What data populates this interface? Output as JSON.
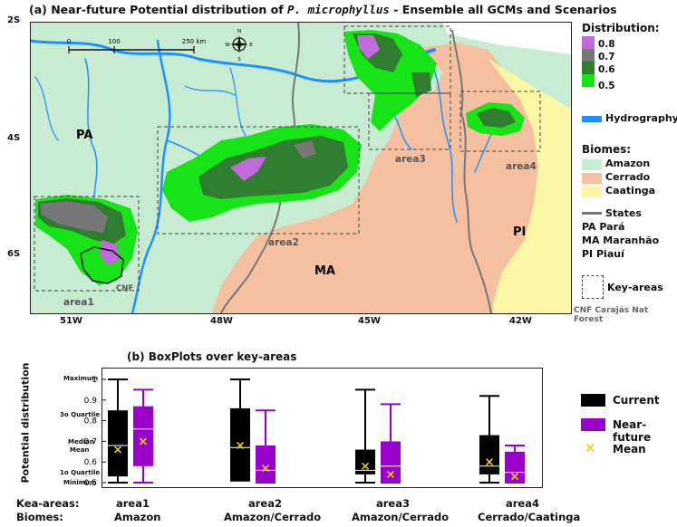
{
  "map": {
    "title_prefix": "(a)  Near-future Potential distribution of",
    "title_species": "P. microphyllus",
    "title_suffix": "- Ensemble all GCMs and Scenarios",
    "lat_labels": [
      "2S",
      "4S",
      "6S"
    ],
    "lon_labels": [
      "51W",
      "48W",
      "45W",
      "42W"
    ],
    "scale_bar": {
      "ticks": [
        "0",
        "100",
        "250 km"
      ]
    },
    "compass": {
      "n": "N",
      "s": "S",
      "e": "E",
      "w": "W"
    },
    "state_labels": {
      "pa": "PA",
      "ma": "MA",
      "pi": "PI"
    },
    "area_labels": [
      "area1",
      "area2",
      "area3",
      "area4"
    ],
    "cnf_label": "CNF",
    "colors": {
      "amazon": "#c8ecd2",
      "cerrado": "#f5c0a0",
      "caatinga": "#fbf7a5",
      "hydrography": "#1e90ff",
      "states": "#777777",
      "d08": "#bf6ad8",
      "d07": "#777777",
      "d06": "#2f7d2f",
      "d05": "#17e417",
      "current": "#000000",
      "near_future": "#9900cc",
      "mean": "#e6d200"
    }
  },
  "legend": {
    "distribution_title": "Distribution:",
    "distribution_items": [
      "0.8",
      "0.7",
      "0.6",
      "0.5"
    ],
    "hydrography": "Hydrography",
    "biomes_title": "Biomes:",
    "biomes": [
      "Amazon",
      "Cerrado",
      "Caatinga"
    ],
    "states_title": "States",
    "states": [
      "PA Pará",
      "MA Maranhão",
      "PI Piauí"
    ],
    "key_areas": "Key-areas",
    "cnf_note": "CNF Carajás Nat Forest"
  },
  "boxplot": {
    "title": "(b)       BoxPlots over key-areas",
    "ylabel": "Potential distribution",
    "stat_labels": [
      "Maximum",
      "3o Quartile",
      "Median",
      "Mean",
      "1o Quartile",
      "Minimum"
    ],
    "legend": [
      "Current",
      "Near-future",
      "Mean"
    ],
    "row_labels": [
      "Kea-areas:",
      "Biomes:"
    ],
    "groups": [
      {
        "area": "area1",
        "biome": "Amazon"
      },
      {
        "area": "area2",
        "biome": "Amazon/Cerrado"
      },
      {
        "area": "area3",
        "biome": "Amazon/Cerrado"
      },
      {
        "area": "area4",
        "biome": "Cerrado/Caatinga"
      }
    ]
  },
  "chart_data": {
    "type": "box",
    "title": "BoxPlots over key-areas",
    "ylabel": "Potential distribution",
    "ylim": [
      0.5,
      1.0
    ],
    "yticks": [
      0.5,
      0.6,
      0.7,
      0.8,
      0.9,
      1.0
    ],
    "categories": [
      "area1",
      "area2",
      "area3",
      "area4"
    ],
    "series": [
      {
        "name": "Current",
        "boxes": [
          {
            "min": 0.5,
            "q1": 0.53,
            "median": 0.68,
            "q3": 0.85,
            "max": 1.0,
            "mean": 0.66
          },
          {
            "min": 0.51,
            "q1": 0.51,
            "median": 0.67,
            "q3": 0.86,
            "max": 1.0,
            "mean": 0.68
          },
          {
            "min": 0.5,
            "q1": 0.54,
            "median": 0.56,
            "q3": 0.66,
            "max": 0.95,
            "mean": 0.58
          },
          {
            "min": 0.5,
            "q1": 0.54,
            "median": 0.58,
            "q3": 0.73,
            "max": 0.92,
            "mean": 0.6
          }
        ]
      },
      {
        "name": "Near-future",
        "boxes": [
          {
            "min": 0.5,
            "q1": 0.58,
            "median": 0.76,
            "q3": 0.87,
            "max": 0.95,
            "mean": 0.7
          },
          {
            "min": 0.5,
            "q1": 0.5,
            "median": 0.56,
            "q3": 0.68,
            "max": 0.85,
            "mean": 0.57
          },
          {
            "min": 0.5,
            "q1": 0.5,
            "median": 0.58,
            "q3": 0.7,
            "max": 0.88,
            "mean": 0.54
          },
          {
            "min": 0.5,
            "q1": 0.5,
            "median": 0.55,
            "q3": 0.65,
            "max": 0.68,
            "mean": 0.53
          }
        ]
      }
    ]
  }
}
